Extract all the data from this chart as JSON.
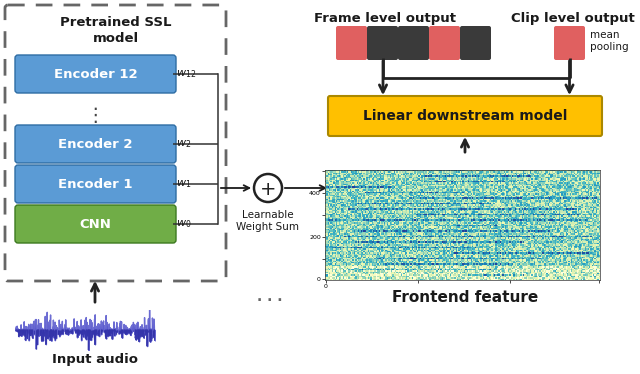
{
  "bg_color": "#ffffff",
  "encoder_color": "#5b9bd5",
  "cnn_color": "#70ad47",
  "linear_color": "#ffc000",
  "frame_red_color": "#e06060",
  "frame_dark_color": "#3a3a3a",
  "title": "Pretrained SSL\nmodel",
  "encoders": [
    "Encoder 12",
    "Encoder 2",
    "Encoder 1",
    "CNN"
  ],
  "linear_label": "Linear downstream model",
  "frontend_label": "Frontend feature",
  "frame_label": "Frame level output",
  "clip_label": "Clip level output",
  "mean_pooling_label": "mean\npooling",
  "learnable_label": "Learnable\nWeight Sum",
  "input_label": "Input audio"
}
